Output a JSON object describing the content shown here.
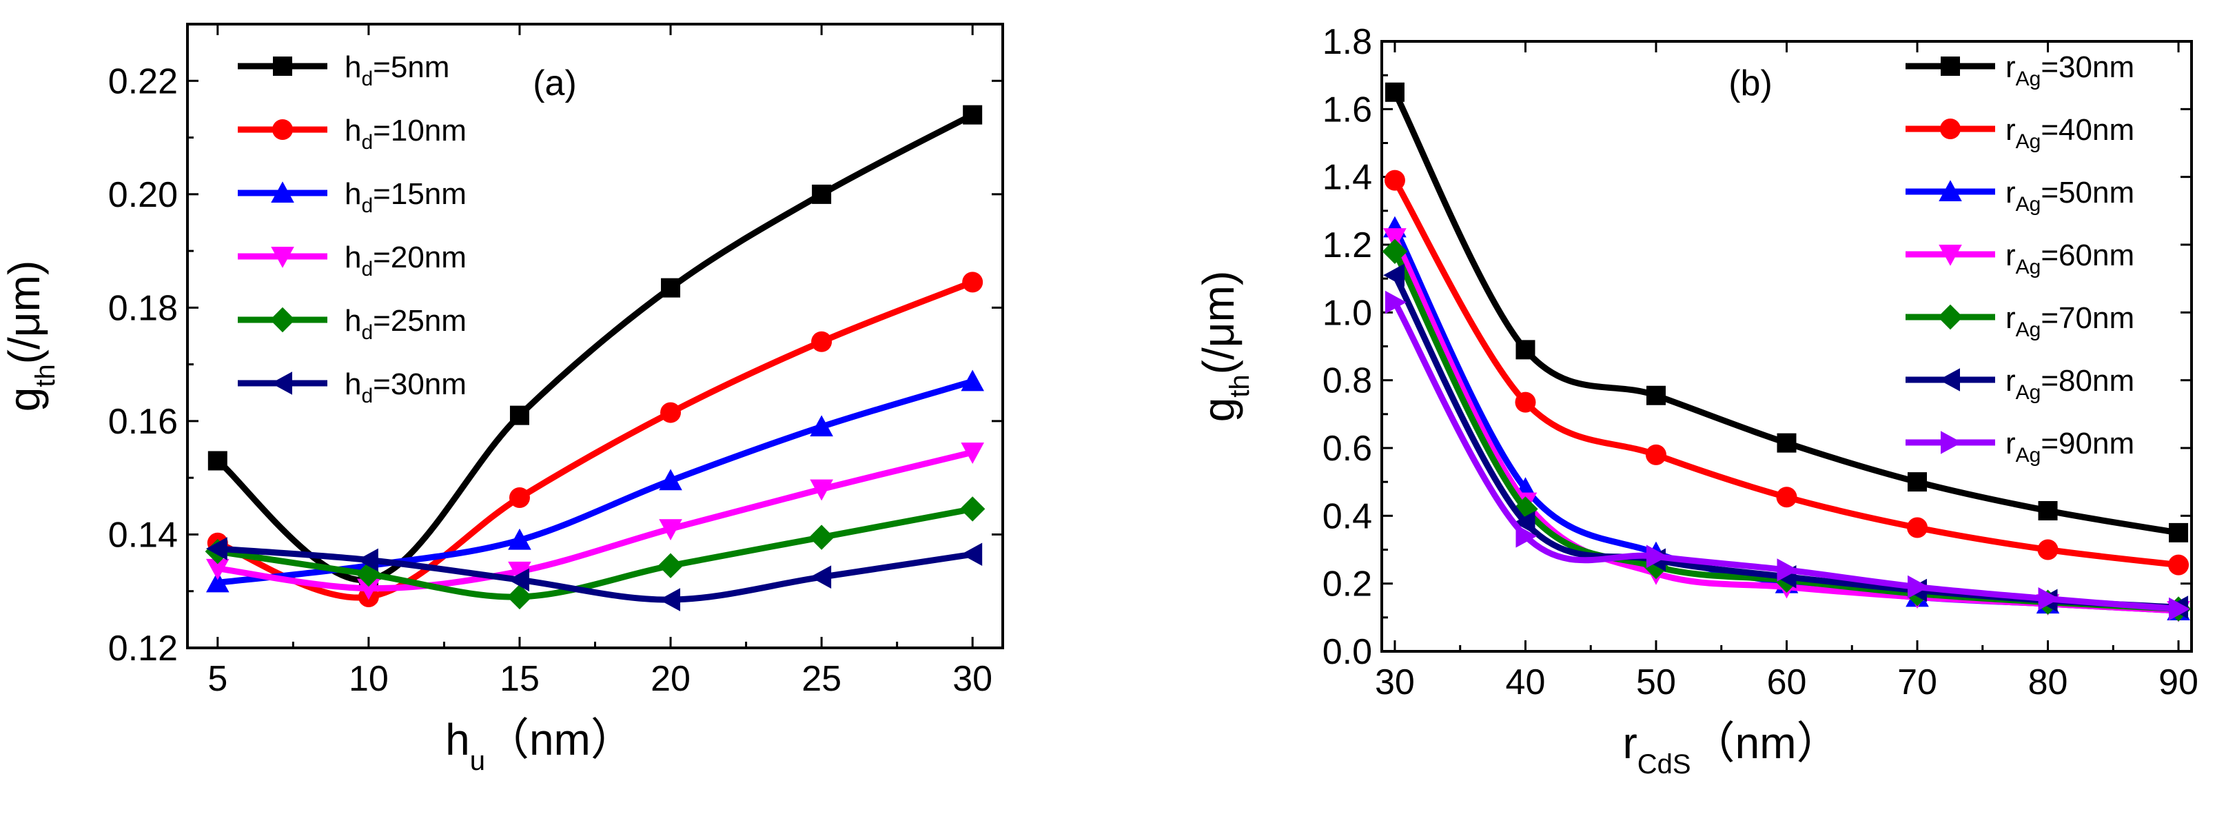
{
  "chart_data": [
    {
      "id": "a",
      "type": "line",
      "panel_label": "(a)",
      "xlabel_main": "h",
      "xlabel_sub": "u",
      "xlabel_unit": "（nm）",
      "ylabel_main": "g",
      "ylabel_sub": "th",
      "ylabel_unit": "(/μm)",
      "xlim": [
        4,
        31
      ],
      "ylim": [
        0.12,
        0.23
      ],
      "xticks": [
        5,
        10,
        15,
        20,
        25,
        30
      ],
      "yticks": [
        0.12,
        0.14,
        0.16,
        0.18,
        0.2,
        0.22
      ],
      "ytick_decimals": 2,
      "legend_position": "top-left",
      "x": [
        5,
        10,
        15,
        20,
        25,
        30
      ],
      "series": [
        {
          "legend_main": "h",
          "legend_sub": "d",
          "legend_rest": "=5nm",
          "color": "#000000",
          "marker": "square",
          "values": [
            0.153,
            0.132,
            0.161,
            0.1835,
            0.2,
            0.214
          ]
        },
        {
          "legend_main": "h",
          "legend_sub": "d",
          "legend_rest": "=10nm",
          "color": "#ff0000",
          "marker": "circle",
          "values": [
            0.1385,
            0.129,
            0.1465,
            0.1615,
            0.174,
            0.1845
          ]
        },
        {
          "legend_main": "h",
          "legend_sub": "d",
          "legend_rest": "=15nm",
          "color": "#0000ff",
          "marker": "triangle-up",
          "values": [
            0.1315,
            0.1345,
            0.139,
            0.1495,
            0.159,
            0.167
          ]
        },
        {
          "legend_main": "h",
          "legend_sub": "d",
          "legend_rest": "=20nm",
          "color": "#ff00ff",
          "marker": "triangle-down",
          "values": [
            0.134,
            0.1305,
            0.1335,
            0.141,
            0.148,
            0.1545
          ]
        },
        {
          "legend_main": "h",
          "legend_sub": "d",
          "legend_rest": "=25nm",
          "color": "#008000",
          "marker": "diamond",
          "values": [
            0.137,
            0.133,
            0.129,
            0.1345,
            0.1395,
            0.1445
          ]
        },
        {
          "legend_main": "h",
          "legend_sub": "d",
          "legend_rest": "=30nm",
          "color": "#000080",
          "marker": "triangle-left",
          "values": [
            0.1375,
            0.1355,
            0.132,
            0.1285,
            0.1325,
            0.1365
          ]
        }
      ]
    },
    {
      "id": "b",
      "type": "line",
      "panel_label": "(b)",
      "xlabel_main": "r",
      "xlabel_sub": "CdS",
      "xlabel_unit": "（nm）",
      "ylabel_main": "g",
      "ylabel_sub": "th",
      "ylabel_unit": "(/μm)",
      "xlim": [
        29,
        91
      ],
      "ylim": [
        0,
        1.8
      ],
      "xticks": [
        30,
        40,
        50,
        60,
        70,
        80,
        90
      ],
      "yticks": [
        0.0,
        0.2,
        0.4,
        0.6,
        0.8,
        1.0,
        1.2,
        1.4,
        1.6,
        1.8
      ],
      "ytick_decimals": 1,
      "legend_position": "top-right",
      "x": [
        30,
        40,
        50,
        60,
        70,
        80,
        90
      ],
      "series": [
        {
          "legend_main": "r",
          "legend_sub": "Ag",
          "legend_rest": "=30nm",
          "color": "#000000",
          "marker": "square",
          "values": [
            1.65,
            0.89,
            0.755,
            0.615,
            0.5,
            0.415,
            0.35
          ]
        },
        {
          "legend_main": "r",
          "legend_sub": "Ag",
          "legend_rest": "=40nm",
          "color": "#ff0000",
          "marker": "circle",
          "values": [
            1.39,
            0.735,
            0.58,
            0.455,
            0.365,
            0.3,
            0.255
          ]
        },
        {
          "legend_main": "r",
          "legend_sub": "Ag",
          "legend_rest": "=50nm",
          "color": "#0000ff",
          "marker": "triangle-up",
          "values": [
            1.25,
            0.48,
            0.29,
            0.2,
            0.16,
            0.14,
            0.12
          ]
        },
        {
          "legend_main": "r",
          "legend_sub": "Ag",
          "legend_rest": "=60nm",
          "color": "#ff00ff",
          "marker": "triangle-down",
          "values": [
            1.22,
            0.44,
            0.23,
            0.19,
            0.16,
            0.14,
            0.12
          ]
        },
        {
          "legend_main": "r",
          "legend_sub": "Ag",
          "legend_rest": "=70nm",
          "color": "#008000",
          "marker": "diamond",
          "values": [
            1.18,
            0.42,
            0.25,
            0.21,
            0.17,
            0.145,
            0.125
          ]
        },
        {
          "legend_main": "r",
          "legend_sub": "Ag",
          "legend_rest": "=80nm",
          "color": "#000080",
          "marker": "triangle-left",
          "values": [
            1.11,
            0.38,
            0.27,
            0.22,
            0.18,
            0.15,
            0.13
          ]
        },
        {
          "legend_main": "r",
          "legend_sub": "Ag",
          "legend_rest": "=90nm",
          "color": "#9900ff",
          "marker": "triangle-right",
          "values": [
            1.03,
            0.34,
            0.28,
            0.24,
            0.19,
            0.155,
            0.125
          ]
        }
      ]
    }
  ]
}
